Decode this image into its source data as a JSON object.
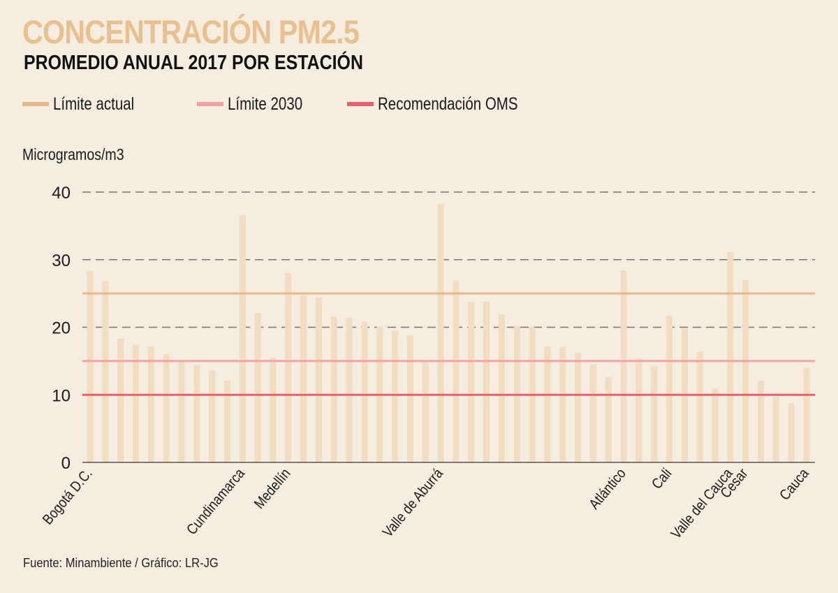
{
  "header": {
    "title": "CONCENTRACIÓN PM2.5",
    "subtitle": "PROMEDIO ANUAL 2017 POR ESTACIÓN"
  },
  "legend": [
    {
      "label": "Límite actual",
      "color": "#e6b98a"
    },
    {
      "label": "Límite 2030",
      "color": "#f2a2a6"
    },
    {
      "label": "Recomendación OMS",
      "color": "#e7626f"
    }
  ],
  "footer": {
    "source": "Fuente: Minambiente / Gráfico: LR-JG"
  },
  "colors": {
    "background": "#f5ede0",
    "bar": "#f2dcc2",
    "title": "#e9c08f",
    "grid": "#7a746c",
    "axis": "#5a5550"
  },
  "chart_data": {
    "type": "bar",
    "title": "CONCENTRACIÓN PM2.5",
    "subtitle": "PROMEDIO ANUAL 2017 POR ESTACIÓN",
    "xlabel": "",
    "ylabel": "Microgramos/m3",
    "ylim": [
      0,
      40
    ],
    "yticks": [
      0,
      10,
      20,
      30,
      40
    ],
    "grid": "dashed horizontal at 20, 30, 40",
    "legend_position": "top-left",
    "values": [
      28.3,
      26.8,
      18.3,
      17.4,
      17.2,
      16.0,
      15.0,
      14.4,
      13.6,
      12.1,
      36.6,
      22.1,
      15.5,
      28.0,
      24.7,
      24.4,
      21.6,
      21.4,
      20.8,
      20.1,
      19.5,
      18.8,
      14.9,
      38.2,
      26.9,
      23.8,
      23.8,
      21.9,
      20.2,
      20.0,
      17.2,
      17.1,
      16.2,
      14.5,
      12.6,
      28.4,
      15.4,
      14.2,
      21.7,
      19.8,
      16.4,
      10.9,
      31.1,
      27.0,
      12.1,
      9.7,
      8.7,
      14.0
    ],
    "category_labels": [
      {
        "index": 0,
        "label": "Bogotá D.C."
      },
      {
        "index": 10,
        "label": "Cundinamarca"
      },
      {
        "index": 13,
        "label": "Medellín"
      },
      {
        "index": 23,
        "label": "Valle de Aburrá"
      },
      {
        "index": 35,
        "label": "Atlántico"
      },
      {
        "index": 38,
        "label": "Cali"
      },
      {
        "index": 42,
        "label": "Valle del Cauca"
      },
      {
        "index": 43,
        "label": "Cesar"
      },
      {
        "index": 47,
        "label": "Cauca"
      }
    ],
    "reference_lines": [
      {
        "name": "Límite actual",
        "value": 25,
        "color": "#e6b98a"
      },
      {
        "name": "Límite 2030",
        "value": 15,
        "color": "#f2a2a6"
      },
      {
        "name": "Recomendación OMS",
        "value": 10,
        "color": "#e7626f"
      }
    ]
  }
}
